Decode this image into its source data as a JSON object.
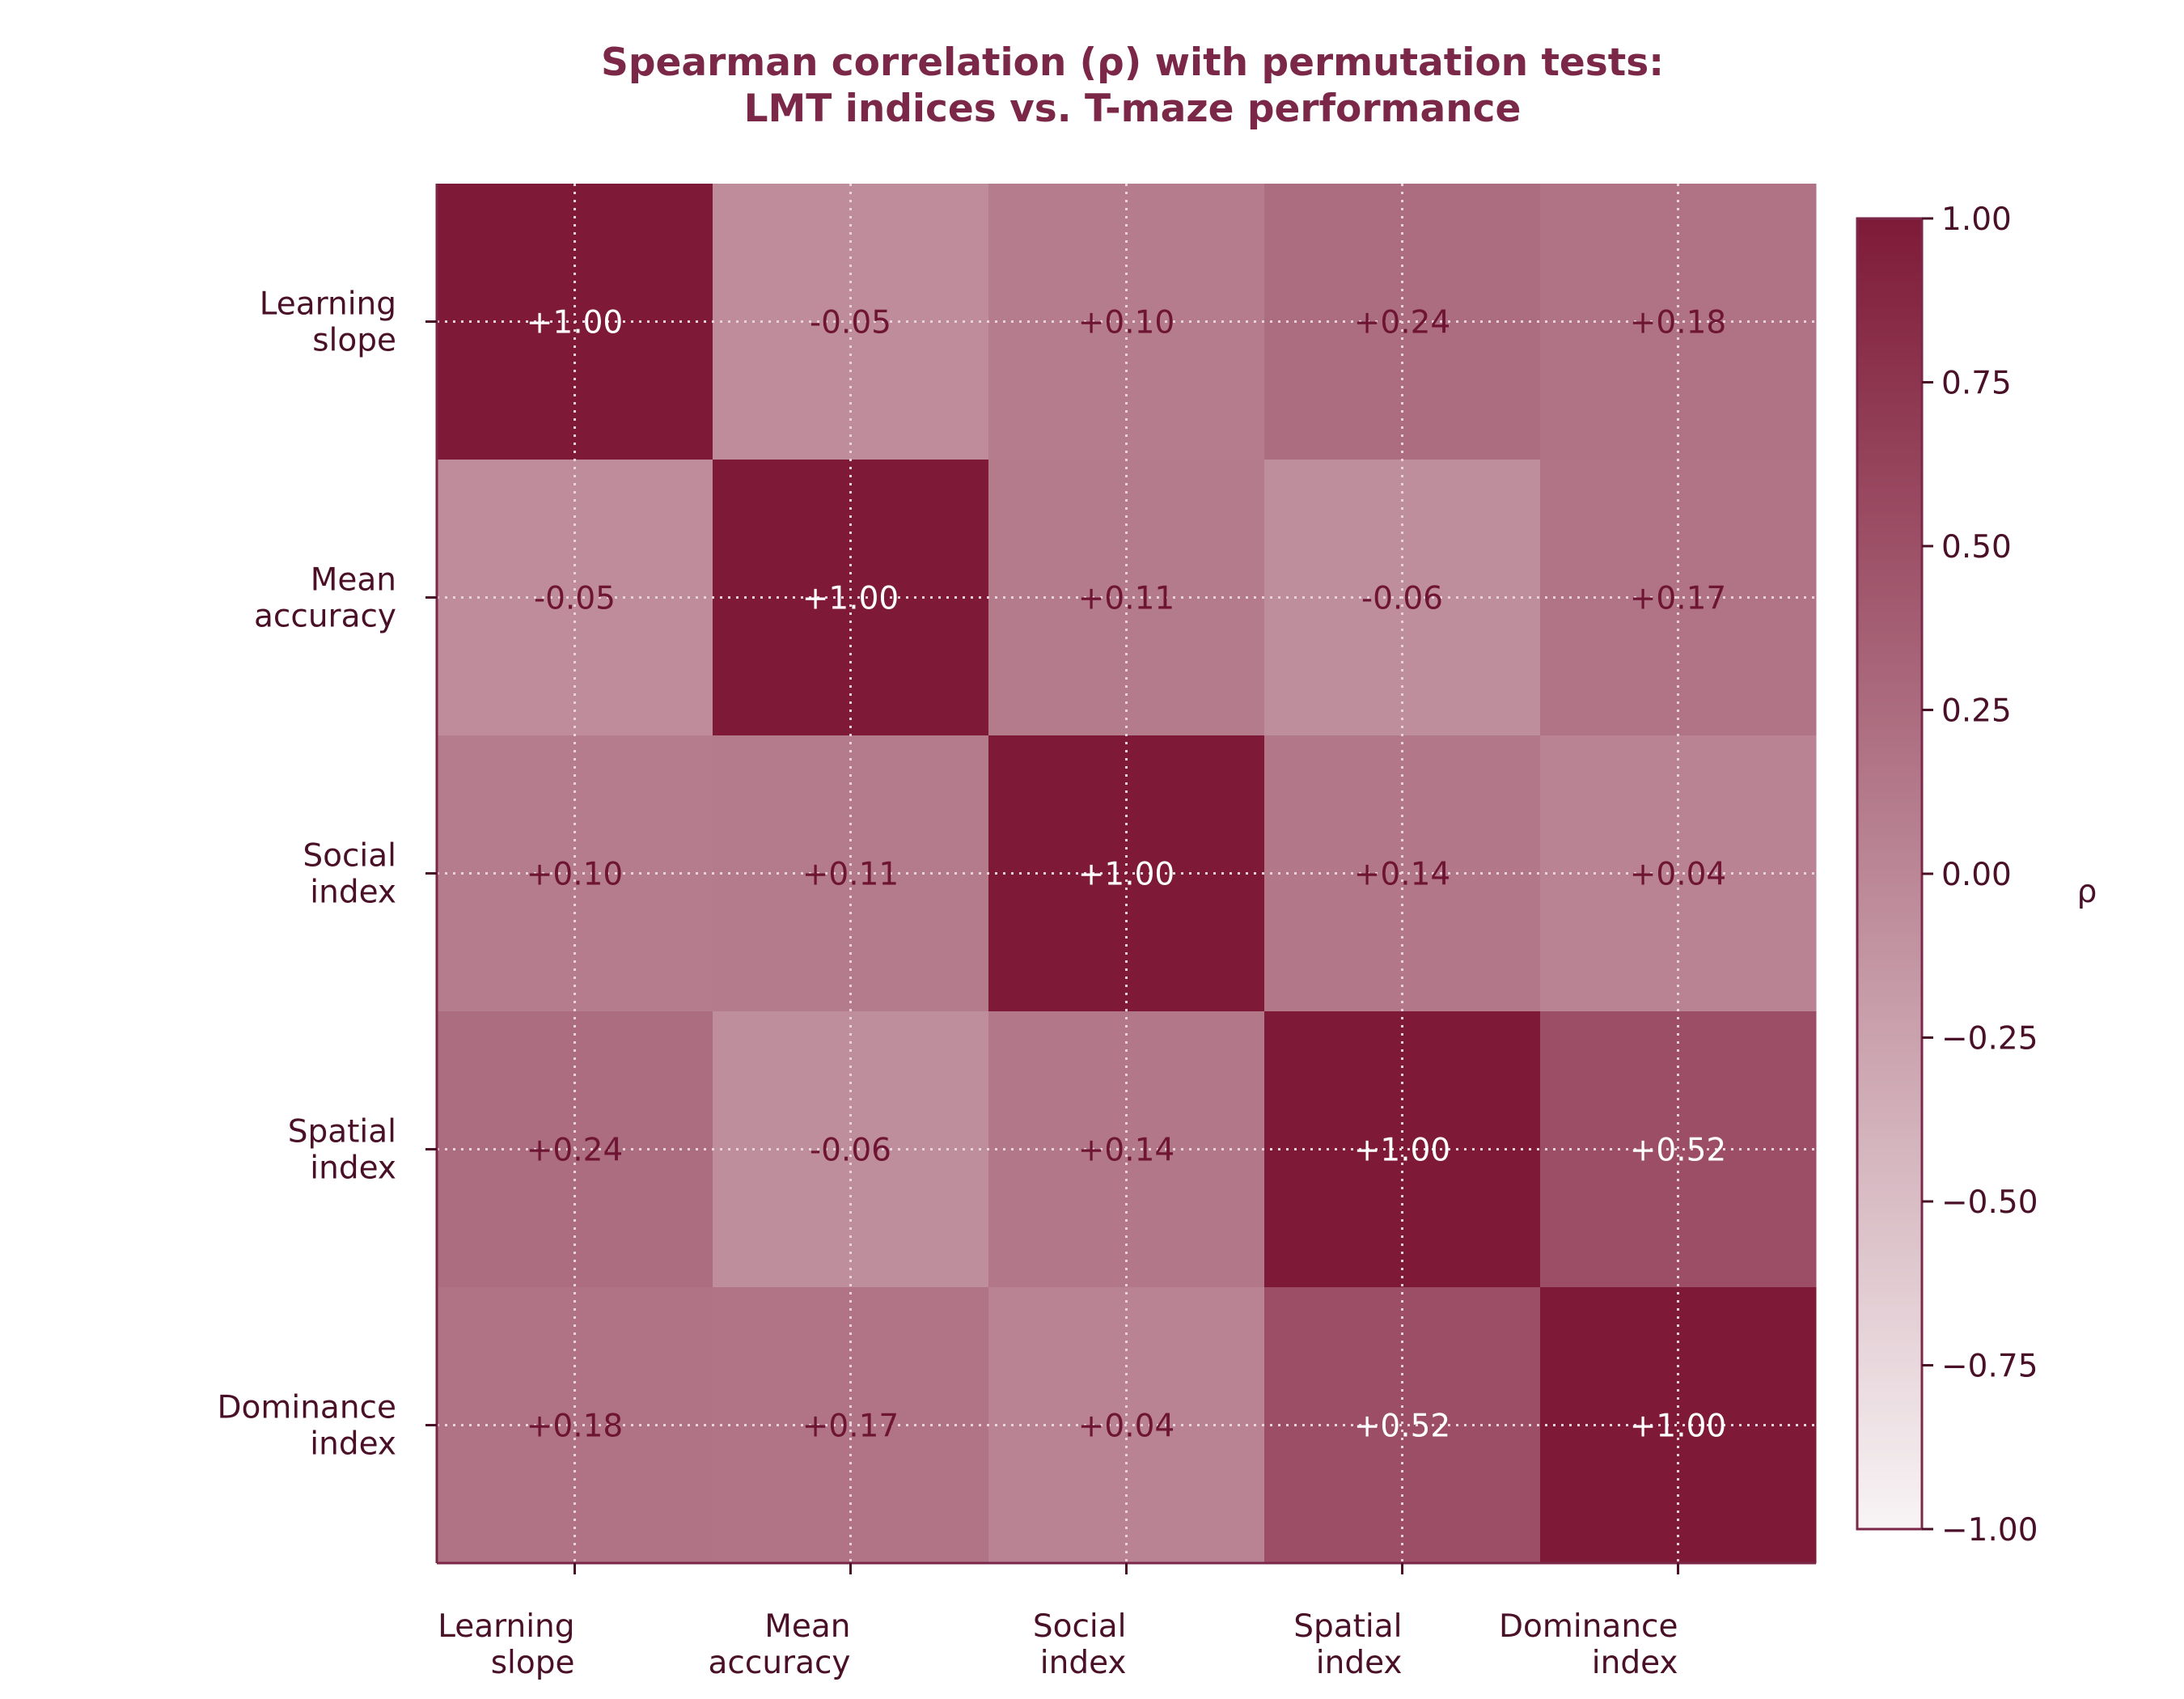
{
  "chart_data": {
    "type": "heatmap",
    "title_lines": [
      "Spearman correlation (ρ) with permutation tests:",
      "LMT indices vs. T-maze performance"
    ],
    "row_labels": [
      [
        "Learning",
        "slope"
      ],
      [
        "Mean",
        "accuracy"
      ],
      [
        "Social",
        "index"
      ],
      [
        "Spatial",
        "index"
      ],
      [
        "Dominance",
        "index"
      ]
    ],
    "col_labels": [
      [
        "Learning",
        "slope"
      ],
      [
        "Mean",
        "accuracy"
      ],
      [
        "Social",
        "index"
      ],
      [
        "Spatial",
        "index"
      ],
      [
        "Dominance",
        "index"
      ]
    ],
    "values": [
      [
        1.0,
        -0.05,
        0.1,
        0.24,
        0.18
      ],
      [
        -0.05,
        1.0,
        0.11,
        -0.06,
        0.17
      ],
      [
        0.1,
        0.11,
        1.0,
        0.14,
        0.04
      ],
      [
        0.24,
        -0.06,
        0.14,
        1.0,
        0.52
      ],
      [
        0.18,
        0.17,
        0.04,
        0.52,
        1.0
      ]
    ],
    "cell_text": [
      [
        "+1.00",
        "-0.05",
        "+0.10",
        "+0.24",
        "+0.18"
      ],
      [
        "-0.05",
        "+1.00",
        "+0.11",
        "-0.06",
        "+0.17"
      ],
      [
        "+0.10",
        "+0.11",
        "+1.00",
        "+0.14",
        "+0.04"
      ],
      [
        "+0.24",
        "-0.06",
        "+0.14",
        "+1.00",
        "+0.52"
      ],
      [
        "+0.18",
        "+0.17",
        "+0.04",
        "+0.52",
        "+1.00"
      ]
    ],
    "vmin": -1.0,
    "vmax": 1.0,
    "colorbar": {
      "label": "ρ",
      "ticks": [
        1.0,
        0.75,
        0.5,
        0.25,
        0.0,
        -0.25,
        -0.5,
        -0.75,
        -1.0
      ],
      "tick_labels": [
        "1.00",
        "0.75",
        "0.50",
        "0.25",
        "0.00",
        "−0.25",
        "−0.50",
        "−0.75",
        "−1.00"
      ]
    },
    "colormap": [
      "#f8f4f5",
      "#7e1a38"
    ],
    "grid": true
  }
}
